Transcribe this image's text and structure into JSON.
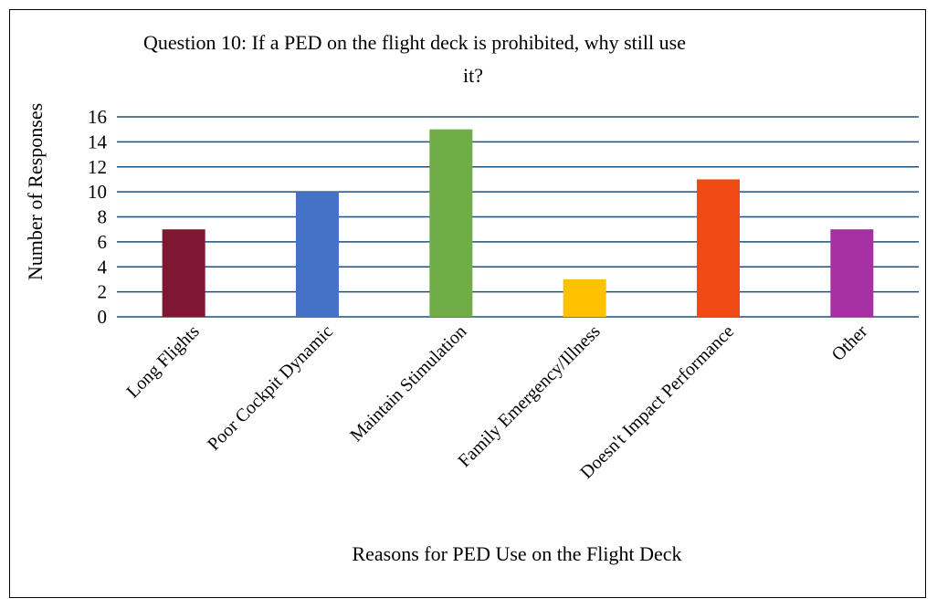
{
  "chart_data": {
    "type": "bar",
    "title": "Question 10: If a PED on the flight deck is prohibited, why still use it?",
    "title_lines": [
      "Question 10: If a PED on the flight deck is prohibited, why still use",
      "it?"
    ],
    "xlabel": "Reasons for PED Use on the Flight Deck",
    "ylabel": "Number of Responses",
    "categories": [
      "Long Flights",
      "Poor Cockpit Dynamic",
      "Maintain Stimulation",
      "Family Emergency/Illness",
      "Doesn't Impact Performance",
      "Other"
    ],
    "values": [
      7,
      10,
      15,
      3,
      11,
      7
    ],
    "colors": [
      "#7F1731",
      "#4472C4",
      "#70AD47",
      "#FFC000",
      "#F04A14",
      "#A531A5"
    ],
    "ylim": [
      0,
      16
    ],
    "yticks": [
      0,
      2,
      4,
      6,
      8,
      10,
      12,
      14,
      16
    ],
    "grid": true,
    "grid_color": "#1F4E79",
    "legend": "none"
  }
}
